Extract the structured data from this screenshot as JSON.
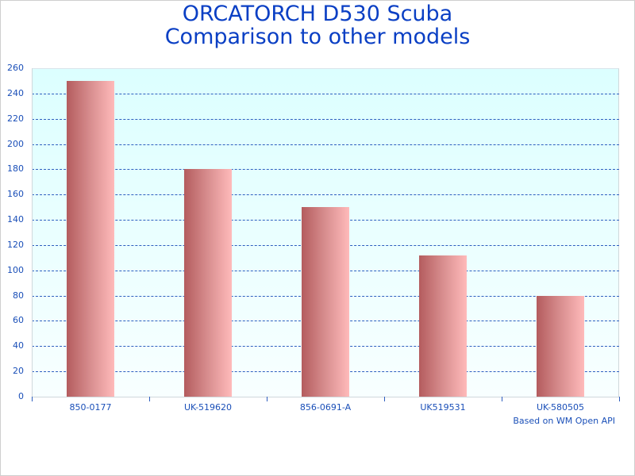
{
  "chart_data": {
    "type": "bar",
    "title": "ORCATORCH D530 Scuba Comparison to other models",
    "title_lines": [
      "ORCATORCH D530 Scuba",
      "Comparison to other models"
    ],
    "categories": [
      "850-0177",
      "UK-519620",
      "856-0691-A",
      "UK519531",
      "UK-580505"
    ],
    "values": [
      250,
      180,
      150,
      112,
      80
    ],
    "xlabel": "",
    "ylabel": "",
    "ylim": [
      0,
      260
    ],
    "yticks": [
      "0",
      "20",
      "40",
      "60",
      "80",
      "100",
      "120",
      "140",
      "160",
      "180",
      "200",
      "220",
      "240",
      "260"
    ],
    "grid": true,
    "legend": null,
    "annotation": "Based on WM Open API",
    "colors": {
      "title": "#0a3fc4",
      "axis_text": "#1a4fb8",
      "grid": "#2e5fbf",
      "bar_dark": "#b45c5e",
      "bar_light": "#ffbaba",
      "plot_bg": "#dcffff"
    }
  }
}
